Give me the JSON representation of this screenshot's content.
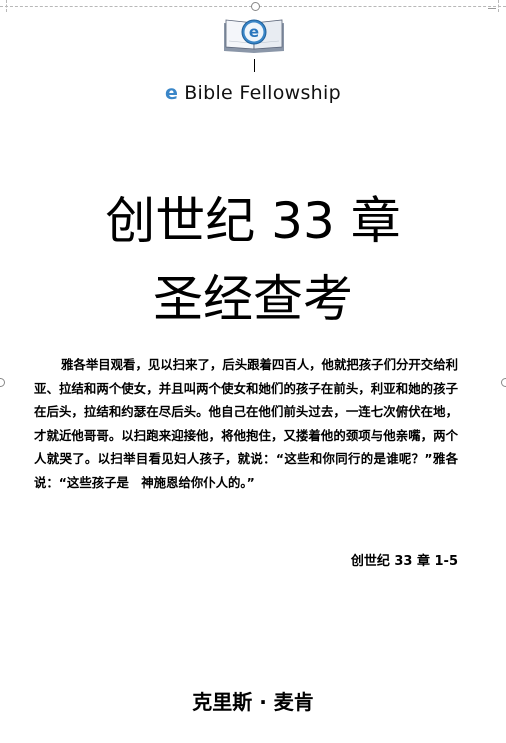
{
  "brand": {
    "e_letter": "e",
    "name": "Bible Fellowship",
    "logo_letter": "e",
    "accent_color": "#3a86c8"
  },
  "title": {
    "line1": "创世纪 33 章",
    "line2": "圣经查考"
  },
  "scripture": {
    "passage": "雅各举目观看，见以扫来了，后头跟着四百人，他就把孩子们分开交给利亚、拉结和两个使女，并且叫两个使女和她们的孩子在前头，利亚和她的孩子在后头，拉结和约瑟在尽后头。他自己在他们前头过去，一连七次俯伏在地，才就近他哥哥。以扫跑来迎接他，将他抱住，又搂着他的颈项与他亲嘴，两个人就哭了。以扫举目看见妇人孩子，就说：“这些和你同行的是谁呢？”雅各说：“这些孩子是　神施恩给你仆人的。”",
    "reference": "创世纪 33 章 1-5"
  },
  "author": "克里斯 · 麦肯"
}
